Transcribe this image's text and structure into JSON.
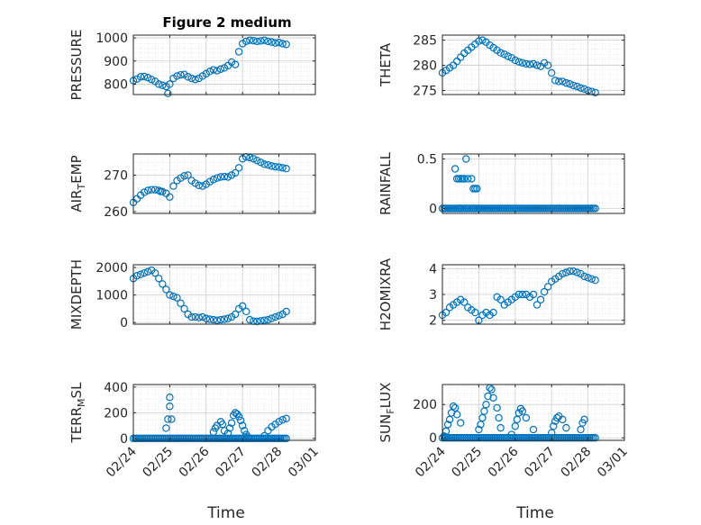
{
  "figure": {
    "title": "Figure 2 medium",
    "marker_color": "#0072bd"
  },
  "x_ticks": [
    "02/24",
    "02/25",
    "02/26",
    "02/27",
    "02/28",
    "03/01"
  ],
  "xlabel": "Time",
  "chart_data": [
    {
      "type": "scatter",
      "name": "pressure",
      "ylabel_parts": [
        {
          "t": "PRESSURE"
        }
      ],
      "yticks": [
        800,
        900,
        1000
      ],
      "ylim": [
        755,
        1012
      ],
      "grid": true,
      "x_day_offsets": [
        0,
        0.1,
        0.2,
        0.3,
        0.4,
        0.5,
        0.6,
        0.7,
        0.8,
        0.9,
        0.95,
        1.0,
        1.1,
        1.2,
        1.3,
        1.4,
        1.5,
        1.6,
        1.7,
        1.8,
        1.9,
        2.0,
        2.1,
        2.2,
        2.3,
        2.4,
        2.5,
        2.6,
        2.7,
        2.8,
        2.9,
        3.0,
        3.1,
        3.2,
        3.3,
        3.4,
        3.5,
        3.6,
        3.7,
        3.8,
        3.9,
        4.0,
        4.1,
        4.2
      ],
      "values": [
        815,
        822,
        832,
        833,
        828,
        820,
        812,
        800,
        795,
        790,
        760,
        800,
        825,
        835,
        840,
        842,
        832,
        825,
        820,
        825,
        835,
        845,
        855,
        862,
        858,
        865,
        870,
        880,
        895,
        885,
        940,
        975,
        985,
        990,
        988,
        985,
        987,
        990,
        985,
        982,
        978,
        980,
        975,
        972
      ]
    },
    {
      "type": "scatter",
      "name": "theta",
      "ylabel_parts": [
        {
          "t": "THETA"
        }
      ],
      "yticks": [
        275,
        280,
        285
      ],
      "ylim": [
        274.2,
        286
      ],
      "grid": true,
      "x_day_offsets": [
        0,
        0.1,
        0.2,
        0.3,
        0.4,
        0.5,
        0.6,
        0.7,
        0.8,
        0.9,
        1.0,
        1.1,
        1.2,
        1.3,
        1.4,
        1.5,
        1.6,
        1.7,
        1.8,
        1.9,
        2.0,
        2.1,
        2.2,
        2.3,
        2.4,
        2.5,
        2.6,
        2.7,
        2.8,
        2.9,
        3.0,
        3.1,
        3.2,
        3.3,
        3.4,
        3.5,
        3.6,
        3.7,
        3.8,
        3.9,
        4.0,
        4.1,
        4.2
      ],
      "values": [
        278.5,
        279,
        279.5,
        280,
        280.8,
        281.6,
        282.4,
        283,
        283.6,
        284.2,
        284.8,
        285,
        284.6,
        284,
        283.5,
        283,
        282.5,
        282.2,
        281.8,
        281.5,
        281,
        280.7,
        280.5,
        280.3,
        280.2,
        280.3,
        280,
        279.8,
        280.5,
        280,
        278.5,
        277,
        276.8,
        276.8,
        276.5,
        276.3,
        276,
        275.8,
        275.5,
        275.3,
        275,
        274.8,
        274.6
      ]
    },
    {
      "type": "scatter",
      "name": "air_temp",
      "ylabel_parts": [
        {
          "t": "AIR"
        },
        {
          "t": "T",
          "sub": true
        },
        {
          "t": "EMP"
        }
      ],
      "yticks": [
        260,
        270
      ],
      "ylim": [
        259.5,
        275.8
      ],
      "grid": true,
      "x_day_offsets": [
        0,
        0.1,
        0.2,
        0.3,
        0.4,
        0.5,
        0.6,
        0.7,
        0.75,
        0.8,
        0.9,
        1.0,
        1.1,
        1.2,
        1.3,
        1.4,
        1.5,
        1.6,
        1.7,
        1.8,
        1.9,
        2.0,
        2.1,
        2.2,
        2.3,
        2.4,
        2.5,
        2.6,
        2.7,
        2.8,
        2.9,
        3.0,
        3.1,
        3.2,
        3.3,
        3.4,
        3.5,
        3.6,
        3.7,
        3.8,
        3.9,
        4.0,
        4.1,
        4.2
      ],
      "values": [
        262.5,
        263.5,
        264.5,
        265.3,
        265.8,
        266,
        266,
        265.8,
        265.5,
        265.5,
        265,
        264,
        267,
        268.5,
        269.2,
        269.8,
        270,
        268.5,
        267.8,
        267.2,
        267,
        267.5,
        268.2,
        268.8,
        269.2,
        269.5,
        269.6,
        269.5,
        270,
        270.6,
        272,
        274.5,
        275,
        274.8,
        274.5,
        274,
        273.5,
        273,
        272.8,
        272.5,
        272.3,
        272.2,
        272,
        271.8
      ]
    },
    {
      "type": "scatter",
      "name": "rainfall",
      "ylabel_parts": [
        {
          "t": "RAINFALL"
        }
      ],
      "yticks": [
        0,
        0.5
      ],
      "yticklabels": [
        "0",
        "0.5"
      ],
      "ylim": [
        -0.05,
        0.55
      ],
      "grid": true,
      "x_day_offsets": [
        0.35,
        0.4,
        0.45,
        0.5,
        0.55,
        0.6,
        0.65,
        0.7,
        0.8,
        0.85,
        0.9,
        0.95,
        1.0,
        0.65,
        0.85,
        0.5
      ],
      "values": [
        0.4,
        0.3,
        0.3,
        0.3,
        0.3,
        0.3,
        0.5,
        0.3,
        0.3,
        0.2,
        0.2,
        0.2,
        0,
        0,
        0,
        0
      ],
      "baseline": {
        "value": 0,
        "from_day": 0,
        "to_day": 4.2
      }
    },
    {
      "type": "scatter",
      "name": "mixdepth",
      "ylabel_parts": [
        {
          "t": "MIXDEPTH"
        }
      ],
      "yticks": [
        0,
        1000,
        2000
      ],
      "ylim": [
        -60,
        2100
      ],
      "grid": true,
      "x_day_offsets": [
        0,
        0.1,
        0.2,
        0.3,
        0.4,
        0.5,
        0.6,
        0.7,
        0.8,
        0.9,
        1.0,
        1.1,
        1.2,
        1.3,
        1.4,
        1.5,
        1.6,
        1.7,
        1.8,
        1.9,
        2.0,
        2.1,
        2.2,
        2.3,
        2.4,
        2.5,
        2.6,
        2.7,
        2.8,
        2.9,
        3.0,
        3.1,
        3.2,
        3.3,
        3.4,
        3.5,
        3.6,
        3.7,
        3.8,
        3.9,
        4.0,
        4.1,
        4.2
      ],
      "values": [
        1600,
        1700,
        1750,
        1800,
        1850,
        1900,
        1800,
        1600,
        1400,
        1200,
        1000,
        950,
        900,
        700,
        500,
        300,
        200,
        200,
        180,
        200,
        150,
        120,
        100,
        80,
        100,
        120,
        150,
        200,
        300,
        500,
        600,
        400,
        100,
        50,
        40,
        60,
        80,
        100,
        150,
        200,
        250,
        300,
        400
      ]
    },
    {
      "type": "scatter",
      "name": "h2omixra",
      "ylabel_parts": [
        {
          "t": "H2OMIXRA"
        }
      ],
      "yticks": [
        2,
        3,
        4
      ],
      "ylim": [
        1.85,
        4.15
      ],
      "grid": true,
      "x_day_offsets": [
        0,
        0.1,
        0.2,
        0.3,
        0.4,
        0.5,
        0.6,
        0.7,
        0.8,
        0.9,
        1.0,
        1.1,
        1.2,
        1.3,
        1.4,
        1.5,
        1.6,
        1.7,
        1.8,
        1.9,
        2.0,
        2.1,
        2.2,
        2.3,
        2.4,
        2.5,
        2.6,
        2.7,
        2.8,
        2.9,
        3.0,
        3.1,
        3.2,
        3.3,
        3.4,
        3.5,
        3.6,
        3.7,
        3.8,
        3.9,
        4.0,
        4.1,
        4.2
      ],
      "values": [
        2.2,
        2.3,
        2.5,
        2.6,
        2.7,
        2.8,
        2.7,
        2.5,
        2.4,
        2.3,
        2.0,
        2.2,
        2.3,
        2.2,
        2.3,
        2.9,
        2.8,
        2.6,
        2.7,
        2.8,
        2.9,
        3.0,
        3.0,
        3.0,
        2.9,
        3.0,
        2.6,
        2.8,
        3.1,
        3.3,
        3.5,
        3.6,
        3.7,
        3.8,
        3.85,
        3.9,
        3.9,
        3.85,
        3.8,
        3.7,
        3.65,
        3.6,
        3.55
      ]
    },
    {
      "type": "scatter",
      "name": "terr_msl",
      "ylabel_parts": [
        {
          "t": "TERR"
        },
        {
          "t": "M",
          "sub": true
        },
        {
          "t": "SL"
        }
      ],
      "yticks": [
        0,
        200,
        400
      ],
      "ylim": [
        -15,
        420
      ],
      "grid": true,
      "x_day_offsets": [
        0.9,
        0.95,
        1.0,
        1.0,
        1.05,
        2.2,
        2.25,
        2.3,
        2.4,
        2.45,
        2.5,
        2.6,
        2.65,
        2.7,
        2.75,
        2.8,
        2.85,
        2.9,
        2.95,
        3.0,
        3.05,
        3.1,
        3.15,
        3.6,
        3.7,
        3.8,
        3.9,
        4.0,
        4.1,
        4.2
      ],
      "values": [
        80,
        150,
        320,
        250,
        150,
        50,
        80,
        100,
        130,
        110,
        60,
        40,
        80,
        120,
        180,
        200,
        190,
        170,
        140,
        100,
        60,
        30,
        10,
        20,
        60,
        90,
        110,
        130,
        145,
        155
      ],
      "baseline": {
        "value": 0,
        "from_day": 0,
        "to_day": 4.2
      }
    },
    {
      "type": "scatter",
      "name": "sun_flux",
      "ylabel_parts": [
        {
          "t": "SUN"
        },
        {
          "t": "F",
          "sub": true
        },
        {
          "t": "LUX"
        }
      ],
      "yticks": [
        0,
        200
      ],
      "ylim": [
        -15,
        320
      ],
      "grid": true,
      "x_day_offsets": [
        0.05,
        0.1,
        0.15,
        0.2,
        0.25,
        0.3,
        0.35,
        0.4,
        0.5,
        1.0,
        1.05,
        1.1,
        1.15,
        1.2,
        1.25,
        1.3,
        1.35,
        1.4,
        1.5,
        1.55,
        1.6,
        1.9,
        2.0,
        2.05,
        2.1,
        2.15,
        2.2,
        2.3,
        2.5,
        3.0,
        3.05,
        3.1,
        3.15,
        3.2,
        3.3,
        3.4,
        3.8,
        3.85,
        3.9
      ],
      "values": [
        10,
        40,
        80,
        110,
        150,
        190,
        180,
        140,
        90,
        50,
        80,
        120,
        160,
        200,
        250,
        300,
        290,
        240,
        180,
        120,
        60,
        20,
        70,
        110,
        150,
        175,
        160,
        120,
        50,
        30,
        70,
        100,
        120,
        130,
        110,
        60,
        50,
        90,
        110
      ],
      "baseline": {
        "value": 0,
        "from_day": 0,
        "to_day": 4.2
      }
    }
  ]
}
